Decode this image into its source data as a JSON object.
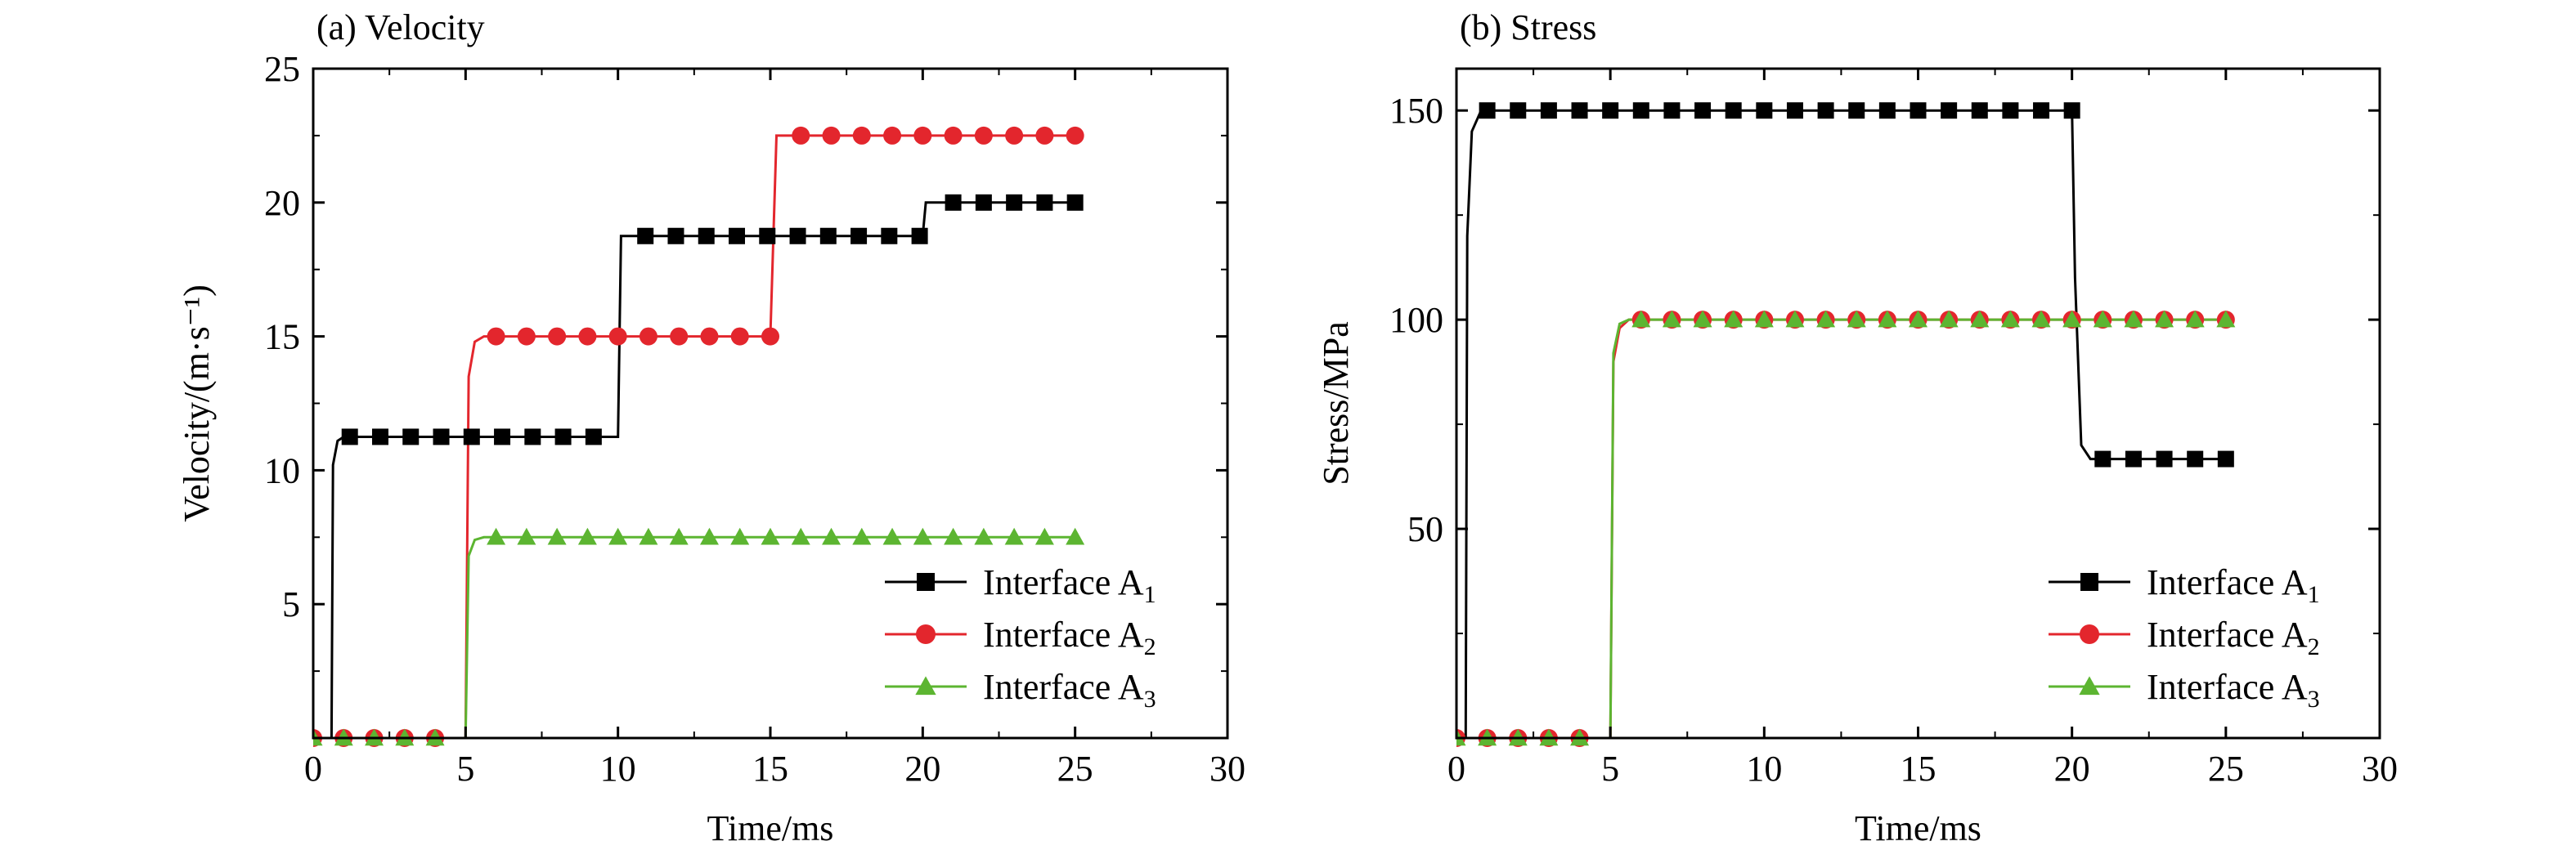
{
  "chart_data": [
    {
      "type": "line",
      "title": "(a) Velocity",
      "xlabel": "Time/ms",
      "ylabel": "Velocity/(m·s⁻¹)",
      "xlim": [
        0,
        30
      ],
      "ylim": [
        0,
        25
      ],
      "xticks": [
        "0",
        "5",
        "10",
        "15",
        "20",
        "25",
        "30"
      ],
      "yticks": [
        "5",
        "10",
        "15",
        "20",
        "25"
      ],
      "grid": false,
      "legend_position": "bottom-right",
      "series": [
        {
          "name": "Interface A",
          "name_subscript": "1",
          "color": "#000000",
          "marker": "square",
          "x": [
            0.6,
            0.65,
            0.8,
            1.0,
            10.0,
            10.1,
            20.0,
            20.1,
            25.0
          ],
          "y": [
            0,
            10.2,
            11.1,
            11.25,
            11.25,
            18.75,
            18.75,
            20.0,
            20.0
          ],
          "marker_x": [
            1.2,
            2.2,
            3.2,
            4.2,
            5.2,
            6.2,
            7.2,
            8.2,
            9.2,
            10.9,
            11.9,
            12.9,
            13.9,
            14.9,
            15.9,
            16.9,
            17.9,
            18.9,
            19.9,
            21.0,
            22.0,
            23.0,
            24.0,
            25.0
          ],
          "marker_y": [
            11.25,
            11.25,
            11.25,
            11.25,
            11.25,
            11.25,
            11.25,
            11.25,
            11.25,
            18.75,
            18.75,
            18.75,
            18.75,
            18.75,
            18.75,
            18.75,
            18.75,
            18.75,
            18.75,
            20.0,
            20.0,
            20.0,
            20.0,
            20.0
          ]
        },
        {
          "name": "Interface A",
          "name_subscript": "2",
          "color": "#e3262d",
          "marker": "circle",
          "x": [
            0,
            5.0,
            5.1,
            5.3,
            5.6,
            15.0,
            15.2,
            25.0
          ],
          "y": [
            0,
            0,
            13.5,
            14.8,
            15.0,
            15.0,
            22.5,
            22.5
          ],
          "marker_x": [
            0,
            1,
            2,
            3,
            4,
            6,
            7,
            8,
            9,
            10,
            11,
            12,
            13,
            14,
            15,
            16,
            17,
            18,
            19,
            20,
            21,
            22,
            23,
            24,
            25
          ],
          "marker_y": [
            0,
            0,
            0,
            0,
            0,
            15,
            15,
            15,
            15,
            15,
            15,
            15,
            15,
            15,
            15,
            22.5,
            22.5,
            22.5,
            22.5,
            22.5,
            22.5,
            22.5,
            22.5,
            22.5,
            22.5
          ]
        },
        {
          "name": "Interface A",
          "name_subscript": "3",
          "color": "#5cb531",
          "marker": "triangle",
          "x": [
            0,
            5.0,
            5.1,
            5.3,
            5.6,
            25.0
          ],
          "y": [
            0,
            0,
            6.8,
            7.4,
            7.5,
            7.5
          ],
          "marker_x": [
            0,
            1,
            2,
            3,
            4,
            6,
            7,
            8,
            9,
            10,
            11,
            12,
            13,
            14,
            15,
            16,
            17,
            18,
            19,
            20,
            21,
            22,
            23,
            24,
            25
          ],
          "marker_y": [
            0,
            0,
            0,
            0,
            0,
            7.5,
            7.5,
            7.5,
            7.5,
            7.5,
            7.5,
            7.5,
            7.5,
            7.5,
            7.5,
            7.5,
            7.5,
            7.5,
            7.5,
            7.5,
            7.5,
            7.5,
            7.5,
            7.5,
            7.5
          ]
        }
      ]
    },
    {
      "type": "line",
      "title": "(b) Stress",
      "xlabel": "Time/ms",
      "ylabel": "Stress/MPa",
      "xlim": [
        0,
        30
      ],
      "ylim": [
        0,
        160
      ],
      "xticks": [
        "0",
        "5",
        "10",
        "15",
        "20",
        "25",
        "30"
      ],
      "yticks": [
        "50",
        "100",
        "150"
      ],
      "grid": false,
      "legend_position": "bottom-right",
      "series": [
        {
          "name": "Interface A",
          "name_subscript": "1",
          "color": "#000000",
          "marker": "square",
          "x": [
            0.3,
            0.35,
            0.5,
            0.8,
            20.0,
            20.1,
            20.3,
            20.6,
            25.0
          ],
          "y": [
            0,
            120,
            145,
            150,
            150,
            110,
            70,
            66.7,
            66.7
          ],
          "marker_x": [
            1,
            2,
            3,
            4,
            5,
            6,
            7,
            8,
            9,
            10,
            11,
            12,
            13,
            14,
            15,
            16,
            17,
            18,
            19,
            20,
            21,
            22,
            23,
            24,
            25
          ],
          "marker_y": [
            150,
            150,
            150,
            150,
            150,
            150,
            150,
            150,
            150,
            150,
            150,
            150,
            150,
            150,
            150,
            150,
            150,
            150,
            150,
            150,
            66.7,
            66.7,
            66.7,
            66.7,
            66.7
          ]
        },
        {
          "name": "Interface A",
          "name_subscript": "2",
          "color": "#e3262d",
          "marker": "circle",
          "x": [
            0,
            5.0,
            5.1,
            5.3,
            5.6,
            25.0
          ],
          "y": [
            0,
            0,
            90,
            98,
            100,
            100
          ],
          "marker_x": [
            0,
            1,
            2,
            3,
            4,
            6,
            7,
            8,
            9,
            10,
            11,
            12,
            13,
            14,
            15,
            16,
            17,
            18,
            19,
            20,
            21,
            22,
            23,
            24,
            25
          ],
          "marker_y": [
            0,
            0,
            0,
            0,
            0,
            100,
            100,
            100,
            100,
            100,
            100,
            100,
            100,
            100,
            100,
            100,
            100,
            100,
            100,
            100,
            100,
            100,
            100,
            100,
            100
          ]
        },
        {
          "name": "Interface A",
          "name_subscript": "3",
          "color": "#5cb531",
          "marker": "triangle",
          "x": [
            0,
            5.0,
            5.1,
            5.3,
            5.6,
            25.0
          ],
          "y": [
            0,
            0,
            92,
            99,
            100,
            100
          ],
          "marker_x": [
            0,
            1,
            2,
            3,
            4,
            6,
            7,
            8,
            9,
            10,
            11,
            12,
            13,
            14,
            15,
            16,
            17,
            18,
            19,
            20,
            21,
            22,
            23,
            24,
            25
          ],
          "marker_y": [
            0,
            0,
            0,
            0,
            0,
            100,
            100,
            100,
            100,
            100,
            100,
            100,
            100,
            100,
            100,
            100,
            100,
            100,
            100,
            100,
            100,
            100,
            100,
            100,
            100
          ]
        }
      ]
    }
  ]
}
